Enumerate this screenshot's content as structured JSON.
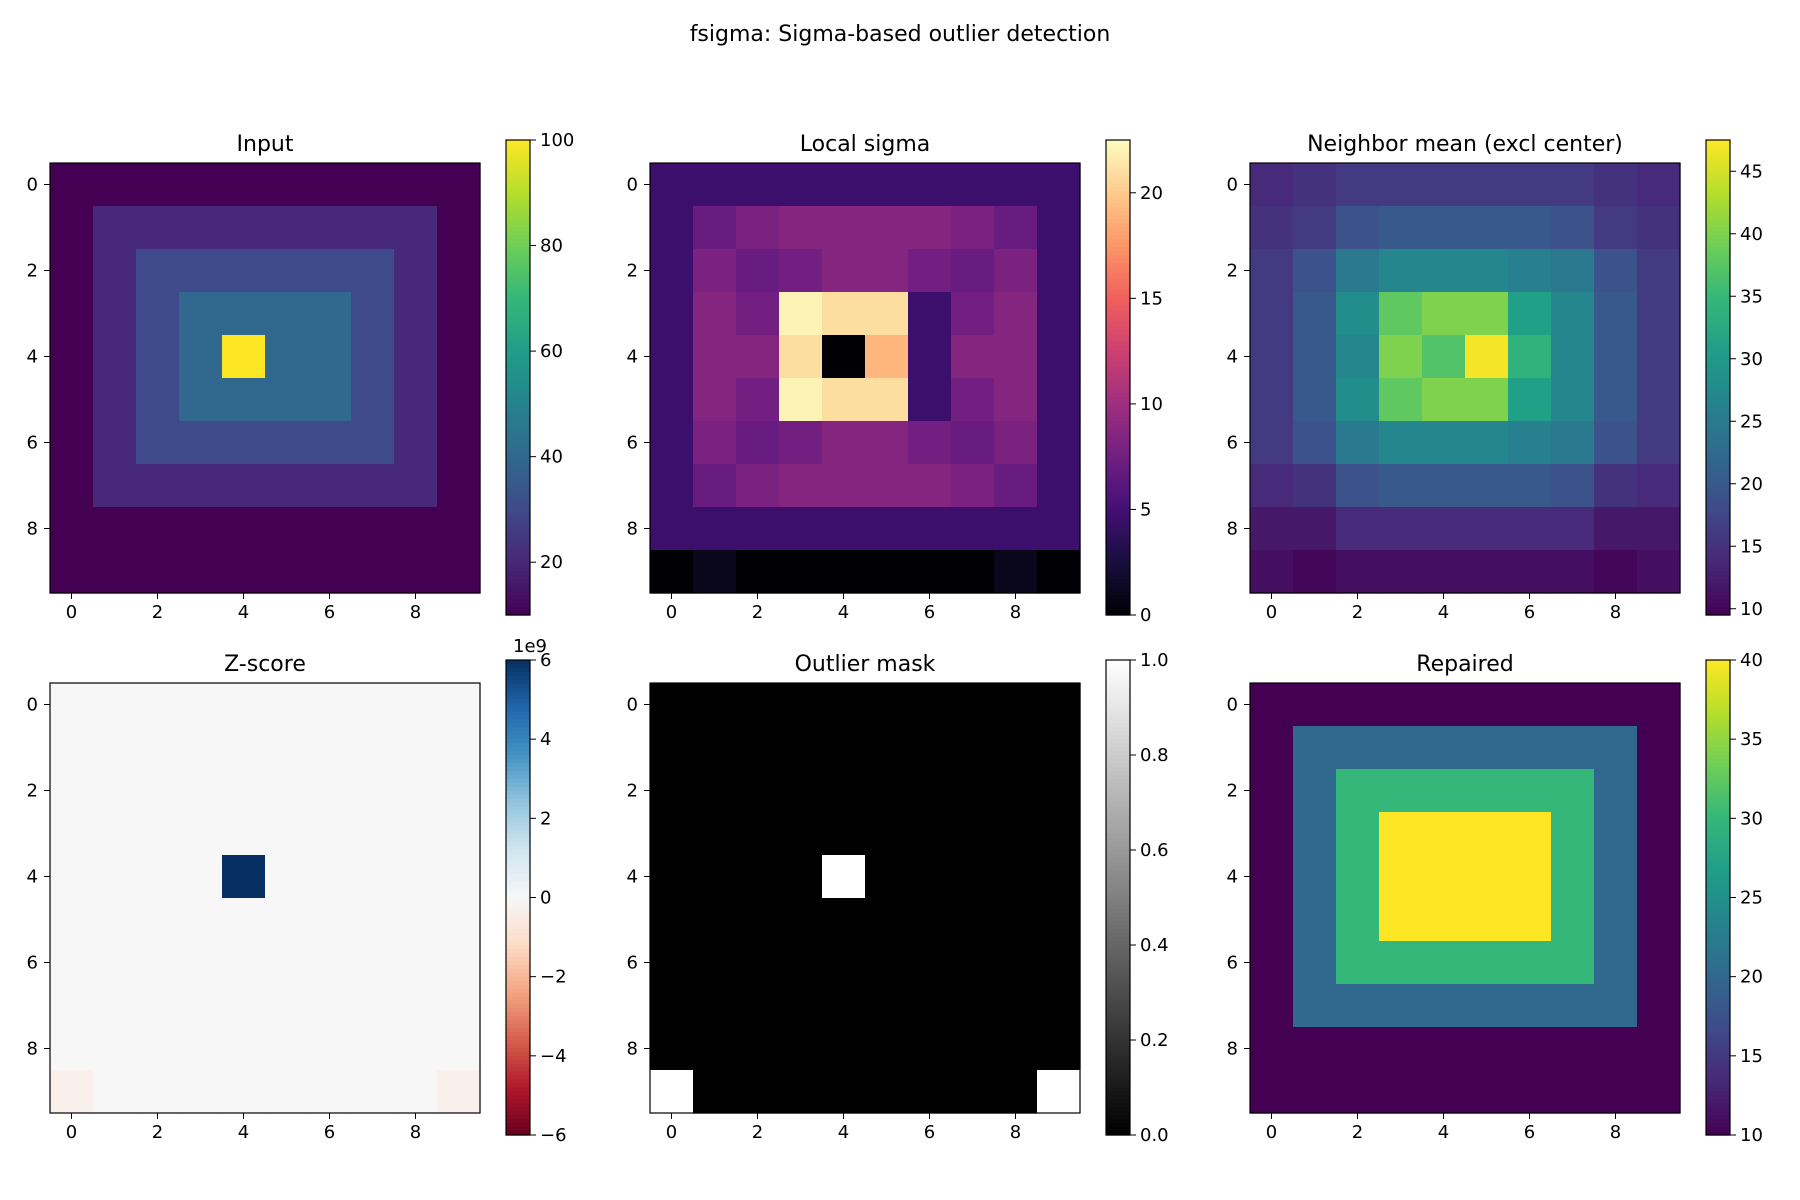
{
  "figure": {
    "suptitle": "fsigma: Sigma-based outlier detection"
  },
  "chart_data": [
    {
      "type": "heatmap",
      "title": "Input",
      "colormap": "viridis",
      "vmin": 10,
      "vmax": 100,
      "colorbar_ticks": [
        "20",
        "40",
        "60",
        "80",
        "100"
      ],
      "colorbar_values": [
        20,
        40,
        60,
        80,
        100
      ],
      "xticks": [
        0,
        2,
        4,
        6,
        8
      ],
      "yticks": [
        0,
        2,
        4,
        6,
        8
      ],
      "values": [
        [
          10,
          10,
          10,
          10,
          10,
          10,
          10,
          10,
          10,
          10
        ],
        [
          10,
          20,
          20,
          20,
          20,
          20,
          20,
          20,
          20,
          10
        ],
        [
          10,
          20,
          30,
          30,
          30,
          30,
          30,
          30,
          20,
          10
        ],
        [
          10,
          20,
          30,
          40,
          40,
          40,
          40,
          30,
          20,
          10
        ],
        [
          10,
          20,
          30,
          40,
          100,
          40,
          40,
          30,
          20,
          10
        ],
        [
          10,
          20,
          30,
          40,
          40,
          40,
          40,
          30,
          20,
          10
        ],
        [
          10,
          20,
          30,
          30,
          30,
          30,
          30,
          30,
          20,
          10
        ],
        [
          10,
          20,
          20,
          20,
          20,
          20,
          20,
          20,
          20,
          10
        ],
        [
          10,
          10,
          10,
          10,
          10,
          10,
          10,
          10,
          10,
          10
        ],
        [
          5,
          10,
          10,
          10,
          10,
          10,
          10,
          10,
          10,
          5
        ]
      ]
    },
    {
      "type": "heatmap",
      "title": "Local sigma",
      "colormap": "magma",
      "vmin": 0,
      "vmax": 22.5,
      "colorbar_ticks": [
        "0",
        "5",
        "10",
        "15",
        "20"
      ],
      "colorbar_values": [
        0,
        5,
        10,
        15,
        20
      ],
      "xticks": [
        0,
        2,
        4,
        6,
        8
      ],
      "yticks": [
        0,
        2,
        4,
        6,
        8
      ],
      "values": [
        [
          4.5,
          4.5,
          4.5,
          4.5,
          4.5,
          4.5,
          4.5,
          4.5,
          4.5,
          4.5
        ],
        [
          4.5,
          7,
          8,
          8.5,
          8.5,
          8.5,
          8.5,
          8,
          7,
          4.5
        ],
        [
          4.5,
          8,
          7,
          7.5,
          8.5,
          8.5,
          7.5,
          7,
          8,
          4.5
        ],
        [
          4.5,
          8.5,
          7.5,
          22,
          21,
          21,
          4.5,
          7.5,
          8.5,
          4.5
        ],
        [
          4.5,
          8.5,
          8.5,
          21,
          0,
          19,
          4.5,
          8.5,
          8.5,
          4.5
        ],
        [
          4.5,
          8.5,
          7.5,
          22,
          21,
          21,
          4.5,
          7.5,
          8.5,
          4.5
        ],
        [
          4.5,
          8,
          7,
          7.5,
          8.5,
          8.5,
          7.5,
          7,
          8,
          4.5
        ],
        [
          4.5,
          7,
          8,
          8.5,
          8.5,
          8.5,
          8.5,
          8,
          7,
          4.5
        ],
        [
          4.5,
          4.5,
          4.5,
          4.5,
          4.5,
          4.5,
          4.5,
          4.5,
          4.5,
          4.5
        ],
        [
          0,
          1,
          0,
          0,
          0,
          0,
          0,
          0,
          1,
          0
        ]
      ]
    },
    {
      "type": "heatmap",
      "title": "Neighbor mean (excl center)",
      "colormap": "viridis",
      "vmin": 9.5,
      "vmax": 47.5,
      "colorbar_ticks": [
        "10",
        "15",
        "20",
        "25",
        "30",
        "35",
        "40",
        "45"
      ],
      "colorbar_values": [
        10,
        15,
        20,
        25,
        30,
        35,
        40,
        45
      ],
      "xticks": [
        0,
        2,
        4,
        6,
        8
      ],
      "yticks": [
        0,
        2,
        4,
        6,
        8
      ],
      "values": [
        [
          14,
          15,
          16,
          16,
          16,
          16,
          16,
          16,
          15,
          14
        ],
        [
          15,
          16,
          19,
          20,
          20,
          20,
          20,
          19,
          16,
          15
        ],
        [
          16,
          19,
          25,
          27,
          27,
          27,
          26,
          25,
          19,
          16
        ],
        [
          16,
          20,
          28,
          38,
          40,
          40,
          31,
          27,
          20,
          16
        ],
        [
          16,
          20,
          27,
          40,
          37,
          47,
          34,
          27,
          20,
          16
        ],
        [
          16,
          20,
          28,
          38,
          40,
          40,
          31,
          27,
          20,
          16
        ],
        [
          16,
          19,
          25,
          27,
          27,
          27,
          26,
          25,
          19,
          16
        ],
        [
          14,
          15,
          19,
          20,
          20,
          20,
          20,
          19,
          15,
          14
        ],
        [
          12,
          12,
          14,
          14,
          14,
          14,
          14,
          14,
          12,
          12
        ],
        [
          11,
          10,
          11,
          11,
          11,
          11,
          11,
          11,
          10,
          11
        ]
      ]
    },
    {
      "type": "heatmap",
      "title": "Z-score",
      "colormap": "RdBu",
      "vmin": -6,
      "vmax": 6,
      "colorbar_ticks": [
        "−6",
        "−4",
        "−2",
        "0",
        "2",
        "4",
        "6"
      ],
      "colorbar_values": [
        -6,
        -4,
        -2,
        0,
        2,
        4,
        6
      ],
      "colorbar_multiplier": "1e9",
      "xticks": [
        0,
        2,
        4,
        6,
        8
      ],
      "yticks": [
        0,
        2,
        4,
        6,
        8
      ],
      "values": [
        [
          0,
          0,
          0,
          0,
          0,
          0,
          0,
          0,
          0,
          0
        ],
        [
          0,
          0,
          0,
          0,
          0,
          0,
          0,
          0,
          0,
          0
        ],
        [
          0,
          0,
          0,
          0,
          0,
          0,
          0,
          0,
          0,
          0
        ],
        [
          0,
          0,
          0,
          0,
          0,
          0,
          0,
          0,
          0,
          0
        ],
        [
          0,
          0,
          0,
          0,
          6,
          0,
          0,
          0,
          0,
          0
        ],
        [
          0,
          0,
          0,
          0,
          0,
          0,
          0,
          0,
          0,
          0
        ],
        [
          0,
          0,
          0,
          0,
          0,
          0,
          0,
          0,
          0,
          0
        ],
        [
          0,
          0,
          0,
          0,
          0,
          0,
          0,
          0,
          0,
          0
        ],
        [
          0,
          0,
          0,
          0,
          0,
          0,
          0,
          0,
          0,
          0
        ],
        [
          -0.3,
          0,
          0,
          0,
          0,
          0,
          0,
          0,
          0,
          -0.3
        ]
      ]
    },
    {
      "type": "heatmap",
      "title": "Outlier mask",
      "colormap": "gray",
      "vmin": 0,
      "vmax": 1,
      "colorbar_ticks": [
        "0.0",
        "0.2",
        "0.4",
        "0.6",
        "0.8",
        "1.0"
      ],
      "colorbar_values": [
        0,
        0.2,
        0.4,
        0.6,
        0.8,
        1.0
      ],
      "xticks": [
        0,
        2,
        4,
        6,
        8
      ],
      "yticks": [
        0,
        2,
        4,
        6,
        8
      ],
      "values": [
        [
          0,
          0,
          0,
          0,
          0,
          0,
          0,
          0,
          0,
          0
        ],
        [
          0,
          0,
          0,
          0,
          0,
          0,
          0,
          0,
          0,
          0
        ],
        [
          0,
          0,
          0,
          0,
          0,
          0,
          0,
          0,
          0,
          0
        ],
        [
          0,
          0,
          0,
          0,
          0,
          0,
          0,
          0,
          0,
          0
        ],
        [
          0,
          0,
          0,
          0,
          1,
          0,
          0,
          0,
          0,
          0
        ],
        [
          0,
          0,
          0,
          0,
          0,
          0,
          0,
          0,
          0,
          0
        ],
        [
          0,
          0,
          0,
          0,
          0,
          0,
          0,
          0,
          0,
          0
        ],
        [
          0,
          0,
          0,
          0,
          0,
          0,
          0,
          0,
          0,
          0
        ],
        [
          0,
          0,
          0,
          0,
          0,
          0,
          0,
          0,
          0,
          0
        ],
        [
          1,
          0,
          0,
          0,
          0,
          0,
          0,
          0,
          0,
          1
        ]
      ]
    },
    {
      "type": "heatmap",
      "title": "Repaired",
      "colormap": "viridis",
      "vmin": 10,
      "vmax": 40,
      "colorbar_ticks": [
        "10",
        "15",
        "20",
        "25",
        "30",
        "35",
        "40"
      ],
      "colorbar_values": [
        10,
        15,
        20,
        25,
        30,
        35,
        40
      ],
      "xticks": [
        0,
        2,
        4,
        6,
        8
      ],
      "yticks": [
        0,
        2,
        4,
        6,
        8
      ],
      "values": [
        [
          10,
          10,
          10,
          10,
          10,
          10,
          10,
          10,
          10,
          10
        ],
        [
          10,
          20,
          20,
          20,
          20,
          20,
          20,
          20,
          20,
          10
        ],
        [
          10,
          20,
          30,
          30,
          30,
          30,
          30,
          30,
          20,
          10
        ],
        [
          10,
          20,
          30,
          40,
          40,
          40,
          40,
          30,
          20,
          10
        ],
        [
          10,
          20,
          30,
          40,
          40,
          40,
          40,
          30,
          20,
          10
        ],
        [
          10,
          20,
          30,
          40,
          40,
          40,
          40,
          30,
          20,
          10
        ],
        [
          10,
          20,
          30,
          30,
          30,
          30,
          30,
          30,
          20,
          10
        ],
        [
          10,
          20,
          20,
          20,
          20,
          20,
          20,
          20,
          20,
          10
        ],
        [
          10,
          10,
          10,
          10,
          10,
          10,
          10,
          10,
          10,
          10
        ],
        [
          10,
          10,
          10,
          10,
          10,
          10,
          10,
          10,
          10,
          10
        ]
      ]
    }
  ]
}
